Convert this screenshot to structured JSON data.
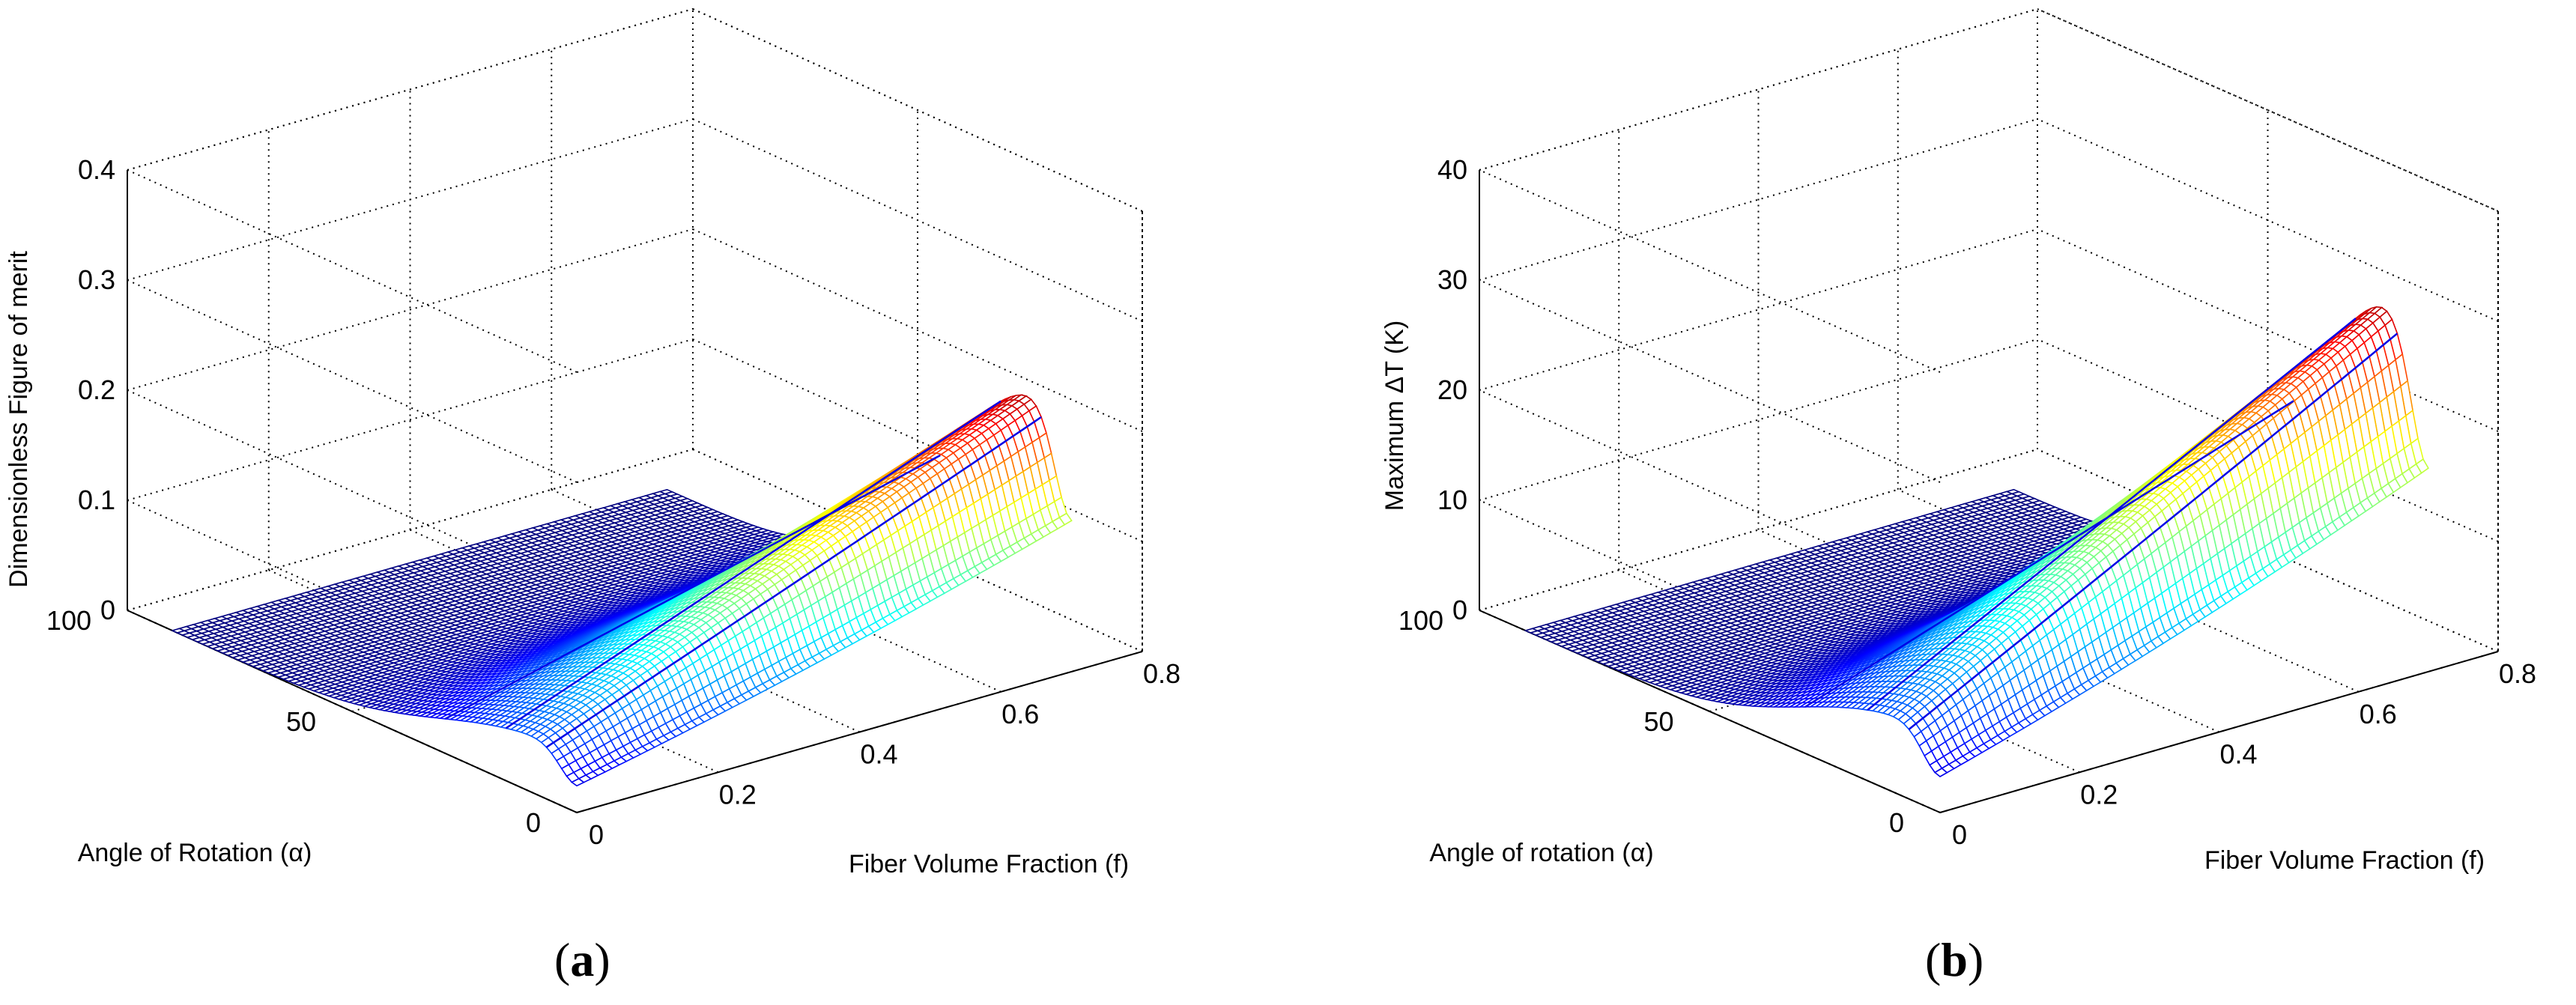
{
  "chart_data": [
    {
      "type": "surface3d",
      "panel_label": "a",
      "zlabel": "Dimensionless Figure of merit",
      "xlabel": "Fiber Volume Fraction (f)",
      "ylabel": "Angle of Rotation (α)",
      "xlim": [
        0,
        0.8
      ],
      "ylim": [
        0,
        100
      ],
      "zlim": [
        0,
        0.4
      ],
      "xticks": [
        "0",
        "0.2",
        "0.4",
        "0.6",
        "0.8"
      ],
      "yticks": [
        "0",
        "50",
        "100"
      ],
      "zticks": [
        "0",
        "0.1",
        "0.2",
        "0.3",
        "0.4"
      ],
      "x_range": [
        0,
        0.7
      ],
      "y_range": [
        0,
        90
      ],
      "peak_value": 0.245,
      "colormap": "jet"
    },
    {
      "type": "surface3d",
      "panel_label": "b",
      "zlabel": "Maximum ΔT (K)",
      "xlabel": "Fiber Volume Fraction (f)",
      "ylabel": "Angle of rotation (α)",
      "xlim": [
        0,
        0.8
      ],
      "ylim": [
        0,
        100
      ],
      "zlim": [
        0,
        40
      ],
      "xticks": [
        "0",
        "0.2",
        "0.4",
        "0.6",
        "0.8"
      ],
      "yticks": [
        "0",
        "50",
        "100"
      ],
      "zticks": [
        "0",
        "10",
        "20",
        "30",
        "40"
      ],
      "x_range": [
        0,
        0.7
      ],
      "y_range": [
        0,
        90
      ],
      "peak_value": 33,
      "colormap": "jet"
    }
  ]
}
